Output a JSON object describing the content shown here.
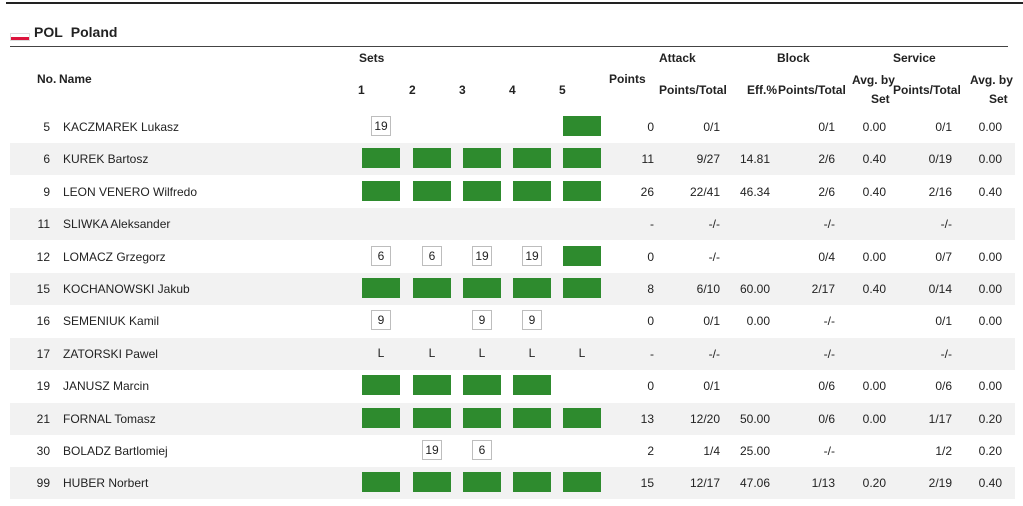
{
  "team": {
    "code": "POL",
    "name": "Poland",
    "flag_colors": [
      "#ffffff",
      "#dc143c"
    ]
  },
  "headers": {
    "no": "No.",
    "name": "Name",
    "sets": "Sets",
    "set_numbers": [
      "1",
      "2",
      "3",
      "4",
      "5"
    ],
    "points": "Points",
    "attack": "Attack",
    "attack_pt": "Points/Total",
    "attack_eff": "Eff.%",
    "block": "Block",
    "block_pt": "Points/Total",
    "block_avg_1": "Avg. by",
    "block_avg_2": "Set",
    "service": "Service",
    "service_pt": "Points/Total",
    "service_avg_1": "Avg. by",
    "service_avg_2": "Set"
  },
  "colors": {
    "set_played": "#2e8b2e",
    "row_alt": "#f2f2f2"
  },
  "players": [
    {
      "no": "5",
      "name": "KACZMAREK Lukasz",
      "sets": [
        "19",
        "",
        "",
        "",
        "full"
      ],
      "points": "0",
      "att_pt": "0/1",
      "att_eff": "",
      "blk_pt": "0/1",
      "blk_avg": "0.00",
      "srv_pt": "0/1",
      "srv_avg": "0.00"
    },
    {
      "no": "6",
      "name": "KUREK Bartosz",
      "sets": [
        "full",
        "full",
        "full",
        "full",
        "full"
      ],
      "points": "11",
      "att_pt": "9/27",
      "att_eff": "14.81",
      "blk_pt": "2/6",
      "blk_avg": "0.40",
      "srv_pt": "0/19",
      "srv_avg": "0.00"
    },
    {
      "no": "9",
      "name": "LEON VENERO Wilfredo",
      "sets": [
        "full",
        "full",
        "full",
        "full",
        "full"
      ],
      "points": "26",
      "att_pt": "22/41",
      "att_eff": "46.34",
      "blk_pt": "2/6",
      "blk_avg": "0.40",
      "srv_pt": "2/16",
      "srv_avg": "0.40"
    },
    {
      "no": "11",
      "name": "SLIWKA Aleksander",
      "sets": [
        "",
        "",
        "",
        "",
        ""
      ],
      "points": "-",
      "att_pt": "-/-",
      "att_eff": "",
      "blk_pt": "-/-",
      "blk_avg": "",
      "srv_pt": "-/-",
      "srv_avg": ""
    },
    {
      "no": "12",
      "name": "LOMACZ Grzegorz",
      "sets": [
        "6",
        "6",
        "19",
        "19",
        "full"
      ],
      "points": "0",
      "att_pt": "-/-",
      "att_eff": "",
      "blk_pt": "0/4",
      "blk_avg": "0.00",
      "srv_pt": "0/7",
      "srv_avg": "0.00"
    },
    {
      "no": "15",
      "name": "KOCHANOWSKI Jakub",
      "sets": [
        "full",
        "full",
        "full",
        "full",
        "full"
      ],
      "points": "8",
      "att_pt": "6/10",
      "att_eff": "60.00",
      "blk_pt": "2/17",
      "blk_avg": "0.40",
      "srv_pt": "0/14",
      "srv_avg": "0.00"
    },
    {
      "no": "16",
      "name": "SEMENIUK Kamil",
      "sets": [
        "9",
        "",
        "9",
        "9",
        ""
      ],
      "points": "0",
      "att_pt": "0/1",
      "att_eff": "0.00",
      "blk_pt": "-/-",
      "blk_avg": "",
      "srv_pt": "0/1",
      "srv_avg": "0.00"
    },
    {
      "no": "17",
      "name": "ZATORSKI Pawel",
      "sets": [
        "L",
        "L",
        "L",
        "L",
        "L"
      ],
      "points": "-",
      "att_pt": "-/-",
      "att_eff": "",
      "blk_pt": "-/-",
      "blk_avg": "",
      "srv_pt": "-/-",
      "srv_avg": ""
    },
    {
      "no": "19",
      "name": "JANUSZ Marcin",
      "sets": [
        "full",
        "full",
        "full",
        "full",
        ""
      ],
      "points": "0",
      "att_pt": "0/1",
      "att_eff": "",
      "blk_pt": "0/6",
      "blk_avg": "0.00",
      "srv_pt": "0/6",
      "srv_avg": "0.00"
    },
    {
      "no": "21",
      "name": "FORNAL Tomasz",
      "sets": [
        "full",
        "full",
        "full",
        "full",
        "full"
      ],
      "points": "13",
      "att_pt": "12/20",
      "att_eff": "50.00",
      "blk_pt": "0/6",
      "blk_avg": "0.00",
      "srv_pt": "1/17",
      "srv_avg": "0.20"
    },
    {
      "no": "30",
      "name": "BOLADZ Bartlomiej",
      "sets": [
        "",
        "19",
        "6",
        "",
        ""
      ],
      "points": "2",
      "att_pt": "1/4",
      "att_eff": "25.00",
      "blk_pt": "-/-",
      "blk_avg": "",
      "srv_pt": "1/2",
      "srv_avg": "0.20"
    },
    {
      "no": "99",
      "name": "HUBER Norbert",
      "sets": [
        "full",
        "full",
        "full",
        "full",
        "full"
      ],
      "points": "15",
      "att_pt": "12/17",
      "att_eff": "47.06",
      "blk_pt": "1/13",
      "blk_avg": "0.20",
      "srv_pt": "2/19",
      "srv_avg": "0.40"
    }
  ]
}
